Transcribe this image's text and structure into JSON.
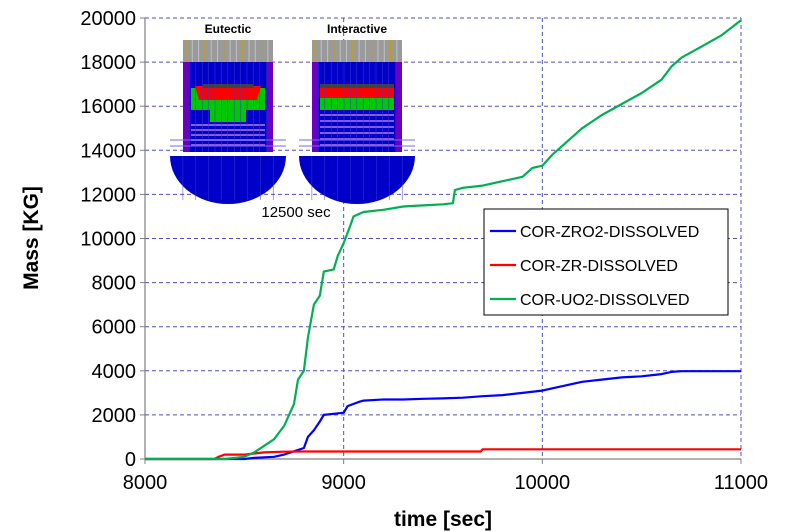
{
  "chart_data": {
    "type": "line",
    "xlabel": "time [sec]",
    "ylabel": "Mass [KG]",
    "xlim": [
      8000,
      11000
    ],
    "ylim": [
      0,
      20000
    ],
    "xticks": [
      "8000",
      "9000",
      "10000",
      "11000"
    ],
    "yticks": [
      "0",
      "2000",
      "4000",
      "6000",
      "8000",
      "10000",
      "12000",
      "14000",
      "16000",
      "18000",
      "20000"
    ],
    "grid": "dashed",
    "legend_position": "center-right",
    "series": [
      {
        "name": "COR-ZRO2-DISSOLVED",
        "color": "#0000ff",
        "points": [
          [
            8000,
            0
          ],
          [
            8500,
            0
          ],
          [
            8550,
            50
          ],
          [
            8650,
            100
          ],
          [
            8700,
            200
          ],
          [
            8750,
            350
          ],
          [
            8800,
            500
          ],
          [
            8820,
            1000
          ],
          [
            8850,
            1300
          ],
          [
            8880,
            1700
          ],
          [
            8900,
            2000
          ],
          [
            8950,
            2050
          ],
          [
            9000,
            2100
          ],
          [
            9020,
            2400
          ],
          [
            9050,
            2500
          ],
          [
            9080,
            2600
          ],
          [
            9100,
            2650
          ],
          [
            9200,
            2700
          ],
          [
            9300,
            2700
          ],
          [
            9400,
            2730
          ],
          [
            9500,
            2750
          ],
          [
            9600,
            2780
          ],
          [
            9700,
            2850
          ],
          [
            9800,
            2900
          ],
          [
            9900,
            3000
          ],
          [
            10000,
            3100
          ],
          [
            10100,
            3300
          ],
          [
            10200,
            3500
          ],
          [
            10300,
            3600
          ],
          [
            10400,
            3700
          ],
          [
            10500,
            3750
          ],
          [
            10600,
            3850
          ],
          [
            10650,
            3950
          ],
          [
            10700,
            3980
          ],
          [
            11000,
            3980
          ]
        ]
      },
      {
        "name": "COR-ZR-DISSOLVED",
        "color": "#ff0000",
        "points": [
          [
            8000,
            0
          ],
          [
            8350,
            0
          ],
          [
            8370,
            100
          ],
          [
            8400,
            200
          ],
          [
            8500,
            200
          ],
          [
            8550,
            250
          ],
          [
            8600,
            300
          ],
          [
            8700,
            330
          ],
          [
            8800,
            340
          ],
          [
            8900,
            340
          ],
          [
            9000,
            340
          ],
          [
            9500,
            340
          ],
          [
            9690,
            340
          ],
          [
            9700,
            440
          ],
          [
            11000,
            440
          ]
        ]
      },
      {
        "name": "COR-UO2-DISSOLVED",
        "color": "#00b050",
        "points": [
          [
            8000,
            0
          ],
          [
            8400,
            0
          ],
          [
            8500,
            100
          ],
          [
            8550,
            300
          ],
          [
            8600,
            600
          ],
          [
            8650,
            900
          ],
          [
            8700,
            1500
          ],
          [
            8750,
            2500
          ],
          [
            8770,
            3600
          ],
          [
            8800,
            4000
          ],
          [
            8820,
            5500
          ],
          [
            8850,
            7000
          ],
          [
            8880,
            7400
          ],
          [
            8900,
            8500
          ],
          [
            8950,
            8600
          ],
          [
            8970,
            9200
          ],
          [
            9000,
            9800
          ],
          [
            9030,
            10500
          ],
          [
            9050,
            11000
          ],
          [
            9100,
            11200
          ],
          [
            9200,
            11300
          ],
          [
            9300,
            11450
          ],
          [
            9400,
            11500
          ],
          [
            9500,
            11550
          ],
          [
            9550,
            11600
          ],
          [
            9560,
            12200
          ],
          [
            9600,
            12300
          ],
          [
            9700,
            12400
          ],
          [
            9800,
            12600
          ],
          [
            9900,
            12800
          ],
          [
            9950,
            13200
          ],
          [
            10000,
            13300
          ],
          [
            10050,
            13800
          ],
          [
            10100,
            14200
          ],
          [
            10200,
            15000
          ],
          [
            10300,
            15600
          ],
          [
            10400,
            16100
          ],
          [
            10500,
            16600
          ],
          [
            10600,
            17200
          ],
          [
            10650,
            17800
          ],
          [
            10700,
            18200
          ],
          [
            10800,
            18700
          ],
          [
            10900,
            19200
          ],
          [
            11000,
            19900
          ]
        ]
      }
    ],
    "inset": {
      "titles": [
        "Eutectic",
        "Interactive"
      ],
      "annotation": "12500 sec"
    }
  }
}
